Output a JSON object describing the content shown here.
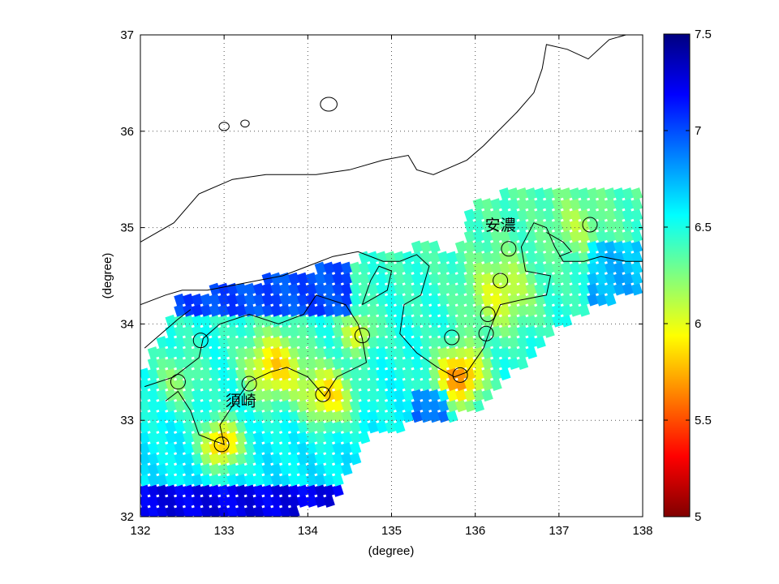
{
  "map": {
    "type": "heatmap",
    "xlabel": "(degree)",
    "ylabel": "(degree)",
    "xlim": [
      132,
      138
    ],
    "ylim": [
      32,
      37
    ],
    "x_ticks": [
      "132",
      "133",
      "134",
      "135",
      "136",
      "137",
      "138"
    ],
    "y_ticks": [
      "32",
      "33",
      "34",
      "35",
      "36",
      "37"
    ],
    "grid": "dotted",
    "place_labels": [
      {
        "text": "須崎",
        "lon": 133.2,
        "lat": 33.15
      },
      {
        "text": "安濃",
        "lon": 136.3,
        "lat": 34.97
      }
    ],
    "site_markers": [
      {
        "lon": 132.45,
        "lat": 33.4
      },
      {
        "lon": 132.72,
        "lat": 33.83
      },
      {
        "lon": 133.3,
        "lat": 33.38
      },
      {
        "lon": 132.97,
        "lat": 32.75
      },
      {
        "lon": 134.18,
        "lat": 33.27
      },
      {
        "lon": 134.65,
        "lat": 33.88
      },
      {
        "lon": 135.72,
        "lat": 33.86
      },
      {
        "lon": 135.82,
        "lat": 33.47
      },
      {
        "lon": 136.13,
        "lat": 33.9
      },
      {
        "lon": 136.15,
        "lat": 34.1
      },
      {
        "lon": 136.3,
        "lat": 34.45
      },
      {
        "lon": 136.4,
        "lat": 34.78
      },
      {
        "lon": 137.37,
        "lat": 35.03
      }
    ]
  },
  "colorbar": {
    "min": 5,
    "max": 7.5,
    "tick_labels": [
      "5",
      "5.5",
      "6",
      "6.5",
      "7",
      "7.5"
    ],
    "colormap": "jet-reversed"
  },
  "colors": {
    "coast": "#000000",
    "grid": "#555555",
    "frame": "#000000"
  }
}
